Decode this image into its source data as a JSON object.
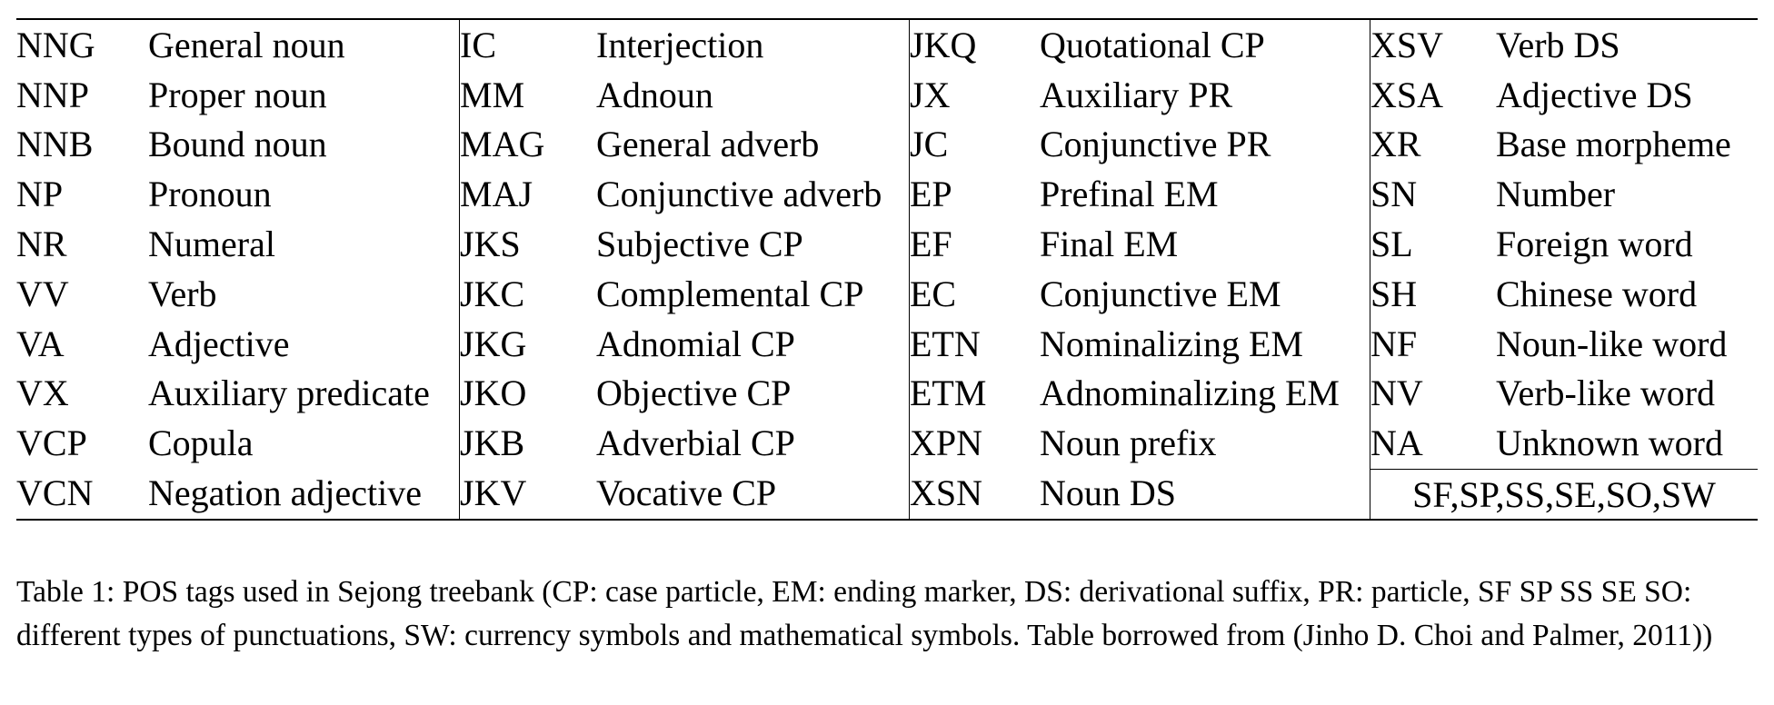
{
  "table": {
    "columns": [
      {
        "rows": [
          {
            "tag": "NNG",
            "desc": "General noun"
          },
          {
            "tag": "NNP",
            "desc": "Proper noun"
          },
          {
            "tag": "NNB",
            "desc": "Bound noun"
          },
          {
            "tag": "NP",
            "desc": "Pronoun"
          },
          {
            "tag": "NR",
            "desc": "Numeral"
          },
          {
            "tag": "VV",
            "desc": "Verb"
          },
          {
            "tag": "VA",
            "desc": "Adjective"
          },
          {
            "tag": "VX",
            "desc": "Auxiliary predicate"
          },
          {
            "tag": "VCP",
            "desc": "Copula"
          },
          {
            "tag": "VCN",
            "desc": "Negation adjective"
          }
        ]
      },
      {
        "rows": [
          {
            "tag": "IC",
            "desc": "Interjection"
          },
          {
            "tag": "MM",
            "desc": "Adnoun"
          },
          {
            "tag": "MAG",
            "desc": "General adverb"
          },
          {
            "tag": "MAJ",
            "desc": "Conjunctive adverb"
          },
          {
            "tag": "JKS",
            "desc": "Subjective CP"
          },
          {
            "tag": "JKC",
            "desc": "Complemental CP"
          },
          {
            "tag": "JKG",
            "desc": "Adnomial CP"
          },
          {
            "tag": "JKO",
            "desc": "Objective CP"
          },
          {
            "tag": "JKB",
            "desc": "Adverbial CP"
          },
          {
            "tag": "JKV",
            "desc": "Vocative CP"
          }
        ]
      },
      {
        "rows": [
          {
            "tag": "JKQ",
            "desc": "Quotational CP"
          },
          {
            "tag": "JX",
            "desc": "Auxiliary PR"
          },
          {
            "tag": "JC",
            "desc": "Conjunctive PR"
          },
          {
            "tag": "EP",
            "desc": "Prefinal EM"
          },
          {
            "tag": "EF",
            "desc": "Final EM"
          },
          {
            "tag": "EC",
            "desc": "Conjunctive EM"
          },
          {
            "tag": "ETN",
            "desc": "Nominalizing EM"
          },
          {
            "tag": "ETM",
            "desc": "Adnominalizing EM"
          },
          {
            "tag": "XPN",
            "desc": "Noun prefix"
          },
          {
            "tag": "XSN",
            "desc": "Noun DS"
          }
        ]
      },
      {
        "rows": [
          {
            "tag": "XSV",
            "desc": "Verb DS"
          },
          {
            "tag": "XSA",
            "desc": "Adjective DS"
          },
          {
            "tag": "XR",
            "desc": "Base morpheme"
          },
          {
            "tag": "SN",
            "desc": "Number"
          },
          {
            "tag": "SL",
            "desc": "Foreign word"
          },
          {
            "tag": "SH",
            "desc": "Chinese word"
          },
          {
            "tag": "NF",
            "desc": "Noun-like word"
          },
          {
            "tag": "NV",
            "desc": "Verb-like word"
          },
          {
            "tag": "NA",
            "desc": "Unknown word"
          }
        ],
        "footer": "SF,SP,SS,SE,SO,SW"
      }
    ]
  },
  "caption": {
    "text": "Table 1: POS tags used in Sejong treebank (CP: case particle, EM: ending marker, DS: derivational suffix, PR: particle, SF SP SS SE SO: different types of punctuations, SW: currency symbols and mathematical symbols. Table borrowed from (Jinho D. Choi and Palmer, 2011))"
  }
}
